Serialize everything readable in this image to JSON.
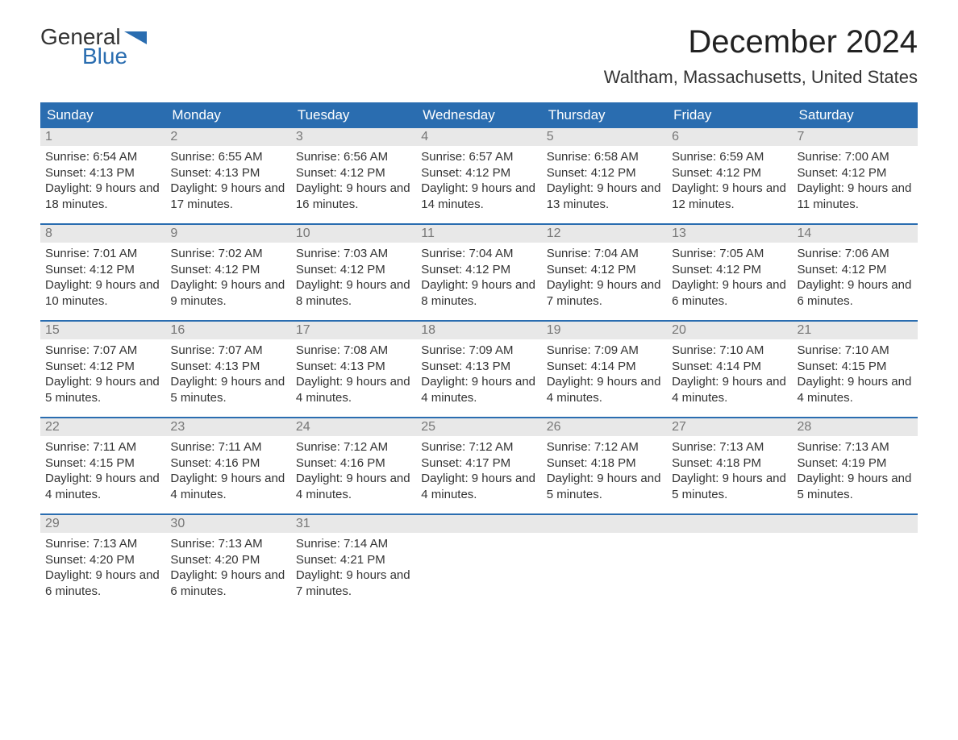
{
  "logo": {
    "text1": "General",
    "text2": "Blue",
    "flag_color": "#2a6db0"
  },
  "title": "December 2024",
  "location": "Waltham, Massachusetts, United States",
  "colors": {
    "header_bg": "#2a6db0",
    "header_text": "#ffffff",
    "daynum_bg": "#e8e8e8",
    "daynum_text": "#777777",
    "body_text": "#333333",
    "week_border": "#2a6db0"
  },
  "day_headers": [
    "Sunday",
    "Monday",
    "Tuesday",
    "Wednesday",
    "Thursday",
    "Friday",
    "Saturday"
  ],
  "weeks": [
    [
      {
        "n": "1",
        "sunrise": "6:54 AM",
        "sunset": "4:13 PM",
        "daylight": "9 hours and 18 minutes."
      },
      {
        "n": "2",
        "sunrise": "6:55 AM",
        "sunset": "4:13 PM",
        "daylight": "9 hours and 17 minutes."
      },
      {
        "n": "3",
        "sunrise": "6:56 AM",
        "sunset": "4:12 PM",
        "daylight": "9 hours and 16 minutes."
      },
      {
        "n": "4",
        "sunrise": "6:57 AM",
        "sunset": "4:12 PM",
        "daylight": "9 hours and 14 minutes."
      },
      {
        "n": "5",
        "sunrise": "6:58 AM",
        "sunset": "4:12 PM",
        "daylight": "9 hours and 13 minutes."
      },
      {
        "n": "6",
        "sunrise": "6:59 AM",
        "sunset": "4:12 PM",
        "daylight": "9 hours and 12 minutes."
      },
      {
        "n": "7",
        "sunrise": "7:00 AM",
        "sunset": "4:12 PM",
        "daylight": "9 hours and 11 minutes."
      }
    ],
    [
      {
        "n": "8",
        "sunrise": "7:01 AM",
        "sunset": "4:12 PM",
        "daylight": "9 hours and 10 minutes."
      },
      {
        "n": "9",
        "sunrise": "7:02 AM",
        "sunset": "4:12 PM",
        "daylight": "9 hours and 9 minutes."
      },
      {
        "n": "10",
        "sunrise": "7:03 AM",
        "sunset": "4:12 PM",
        "daylight": "9 hours and 8 minutes."
      },
      {
        "n": "11",
        "sunrise": "7:04 AM",
        "sunset": "4:12 PM",
        "daylight": "9 hours and 8 minutes."
      },
      {
        "n": "12",
        "sunrise": "7:04 AM",
        "sunset": "4:12 PM",
        "daylight": "9 hours and 7 minutes."
      },
      {
        "n": "13",
        "sunrise": "7:05 AM",
        "sunset": "4:12 PM",
        "daylight": "9 hours and 6 minutes."
      },
      {
        "n": "14",
        "sunrise": "7:06 AM",
        "sunset": "4:12 PM",
        "daylight": "9 hours and 6 minutes."
      }
    ],
    [
      {
        "n": "15",
        "sunrise": "7:07 AM",
        "sunset": "4:12 PM",
        "daylight": "9 hours and 5 minutes."
      },
      {
        "n": "16",
        "sunrise": "7:07 AM",
        "sunset": "4:13 PM",
        "daylight": "9 hours and 5 minutes."
      },
      {
        "n": "17",
        "sunrise": "7:08 AM",
        "sunset": "4:13 PM",
        "daylight": "9 hours and 4 minutes."
      },
      {
        "n": "18",
        "sunrise": "7:09 AM",
        "sunset": "4:13 PM",
        "daylight": "9 hours and 4 minutes."
      },
      {
        "n": "19",
        "sunrise": "7:09 AM",
        "sunset": "4:14 PM",
        "daylight": "9 hours and 4 minutes."
      },
      {
        "n": "20",
        "sunrise": "7:10 AM",
        "sunset": "4:14 PM",
        "daylight": "9 hours and 4 minutes."
      },
      {
        "n": "21",
        "sunrise": "7:10 AM",
        "sunset": "4:15 PM",
        "daylight": "9 hours and 4 minutes."
      }
    ],
    [
      {
        "n": "22",
        "sunrise": "7:11 AM",
        "sunset": "4:15 PM",
        "daylight": "9 hours and 4 minutes."
      },
      {
        "n": "23",
        "sunrise": "7:11 AM",
        "sunset": "4:16 PM",
        "daylight": "9 hours and 4 minutes."
      },
      {
        "n": "24",
        "sunrise": "7:12 AM",
        "sunset": "4:16 PM",
        "daylight": "9 hours and 4 minutes."
      },
      {
        "n": "25",
        "sunrise": "7:12 AM",
        "sunset": "4:17 PM",
        "daylight": "9 hours and 4 minutes."
      },
      {
        "n": "26",
        "sunrise": "7:12 AM",
        "sunset": "4:18 PM",
        "daylight": "9 hours and 5 minutes."
      },
      {
        "n": "27",
        "sunrise": "7:13 AM",
        "sunset": "4:18 PM",
        "daylight": "9 hours and 5 minutes."
      },
      {
        "n": "28",
        "sunrise": "7:13 AM",
        "sunset": "4:19 PM",
        "daylight": "9 hours and 5 minutes."
      }
    ],
    [
      {
        "n": "29",
        "sunrise": "7:13 AM",
        "sunset": "4:20 PM",
        "daylight": "9 hours and 6 minutes."
      },
      {
        "n": "30",
        "sunrise": "7:13 AM",
        "sunset": "4:20 PM",
        "daylight": "9 hours and 6 minutes."
      },
      {
        "n": "31",
        "sunrise": "7:14 AM",
        "sunset": "4:21 PM",
        "daylight": "9 hours and 7 minutes."
      },
      {
        "empty": true
      },
      {
        "empty": true
      },
      {
        "empty": true
      },
      {
        "empty": true
      }
    ]
  ],
  "labels": {
    "sunrise_prefix": "Sunrise: ",
    "sunset_prefix": "Sunset: ",
    "daylight_prefix": "Daylight: "
  }
}
